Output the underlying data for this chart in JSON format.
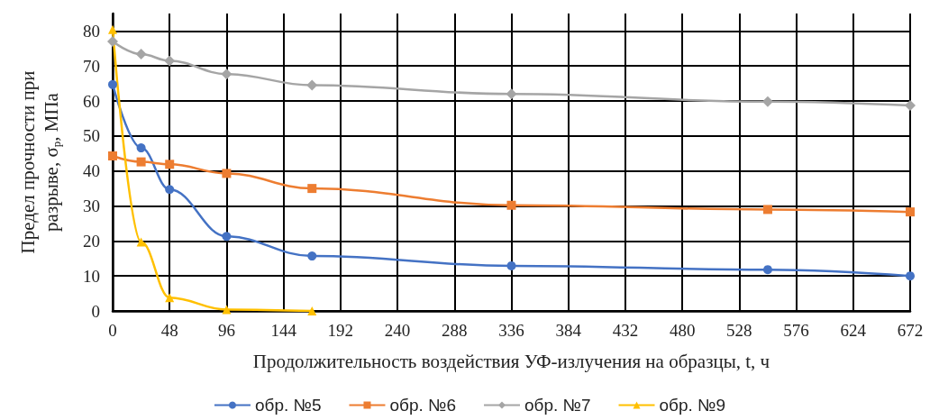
{
  "chart_data": {
    "type": "line",
    "xlabel": "Продолжительность воздействия УФ-излучения на образцы, t, ч",
    "ylabel": "Предел прочности при разрыве, σ$_{р}$, МПа",
    "xlim": [
      0,
      672
    ],
    "xticks": [
      0,
      48,
      96,
      144,
      192,
      240,
      288,
      336,
      384,
      432,
      480,
      528,
      576,
      624,
      672
    ],
    "ylim": [
      0,
      85
    ],
    "yticks": [
      0,
      10,
      20,
      30,
      40,
      50,
      60,
      70,
      80
    ],
    "grid": true,
    "legend": "bottom",
    "line_style": "solid",
    "series": [
      {
        "name": "обр. №5",
        "color": "#4472c4",
        "marker": "circle",
        "x": [
          0,
          24,
          48,
          96,
          168,
          336,
          552,
          672
        ],
        "values": [
          64.7,
          46.6,
          34.7,
          21.3,
          15.7,
          12.9,
          11.8,
          10
        ]
      },
      {
        "name": "обр. №6",
        "color": "#ed7d31",
        "marker": "square",
        "x": [
          0,
          24,
          48,
          96,
          168,
          336,
          552,
          672
        ],
        "values": [
          44.3,
          42.6,
          41.9,
          39.3,
          35,
          30.2,
          29,
          28.3
        ]
      },
      {
        "name": "обр. №7",
        "color": "#a5a5a5",
        "marker": "diamond",
        "x": [
          0,
          24,
          48,
          96,
          168,
          336,
          552,
          672
        ],
        "values": [
          77,
          73.4,
          71.5,
          67.7,
          64.5,
          62,
          59.8,
          58.7
        ]
      },
      {
        "name": "обр. №9",
        "color": "#ffc000",
        "marker": "triangle",
        "x": [
          0,
          24,
          48,
          96,
          168
        ],
        "values": [
          80.4,
          19.7,
          3.8,
          0.4,
          0
        ]
      }
    ]
  }
}
